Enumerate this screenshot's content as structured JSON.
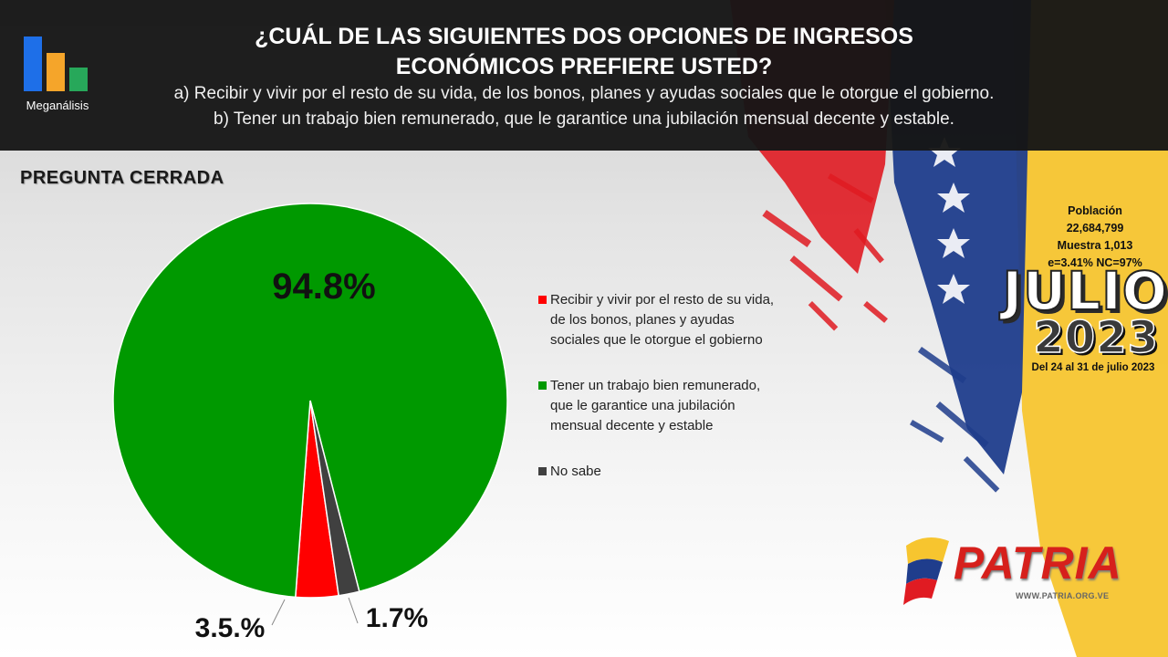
{
  "header": {
    "logo_label": "Meganálisis",
    "title_line1": "¿CUÁL DE LAS SIGUIENTES DOS OPCIONES DE INGRESOS",
    "title_line2": "ECONÓMICOS PREFIERE USTED?",
    "option_a": "a) Recibir y vivir por el resto de su vida, de los bonos, planes y ayudas sociales que le otorgue el gobierno.",
    "option_b": "b) Tener un trabajo bien remunerado,  que le garantice una jubilación mensual decente y estable."
  },
  "subtitle": "PREGUNTA  CERRADA",
  "chart_data": {
    "type": "pie",
    "title": "",
    "slices": [
      {
        "label": "Recibir y vivir por el resto de su vida, de los bonos, planes y ayudas sociales que le otorgue el gobierno",
        "value": 3.5,
        "display": "3.5.%",
        "color": "#ff0000"
      },
      {
        "label": "Tener un trabajo bien remunerado, que le garantice una jubilación mensual decente y estable",
        "value": 94.8,
        "display": "94.8%",
        "color": "#009900"
      },
      {
        "label": "No sabe",
        "value": 1.7,
        "display": "1.7%",
        "color": "#404040"
      }
    ],
    "legend_position": "right"
  },
  "legend": {
    "items": [
      {
        "lines": [
          "Recibir y vivir por el resto de su vida,",
          "de los bonos, planes y ayudas",
          "sociales que le otorgue el gobierno"
        ],
        "color": "#ff0000"
      },
      {
        "lines": [
          "Tener un trabajo bien remunerado,",
          "que le garantice una jubilación",
          "mensual decente y estable"
        ],
        "color": "#009900"
      },
      {
        "lines": [
          "No sabe"
        ],
        "color": "#404040"
      }
    ]
  },
  "info": {
    "poblacion_label": "Población",
    "poblacion_value": "22,684,799",
    "muestra": "Muestra 1,013",
    "error": "e=3.41%  NC=97%",
    "month": "JULIO",
    "year": "2023",
    "dates": "Del 24 al 31 de julio 2023"
  },
  "brand": {
    "name": "PATRIA",
    "url": "WWW.PATRIA.ORG.VE"
  }
}
